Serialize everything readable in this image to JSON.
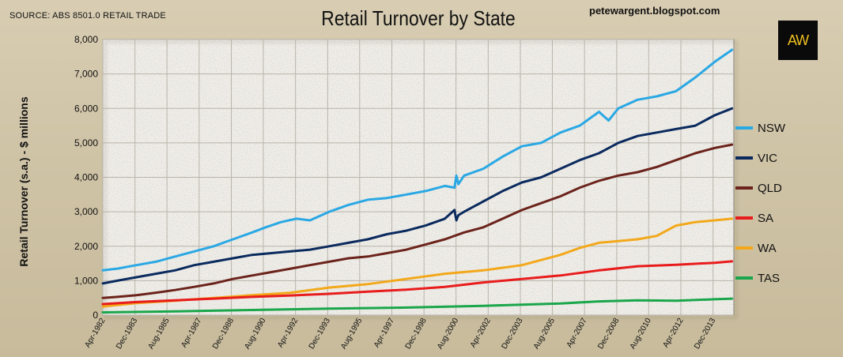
{
  "header": {
    "source": "SOURCE: ABS 8501.0 RETAIL TRADE",
    "blog": "petewargent.blogspot.com",
    "logo": "AW"
  },
  "chart_data": {
    "type": "line",
    "title": "Retail Turnover by State",
    "ylabel": "Retail Turnover (s.a.) - $ millions",
    "xlabel": "",
    "ylim": [
      0,
      8000
    ],
    "yticks": [
      0,
      1000,
      2000,
      3000,
      4000,
      5000,
      6000,
      7000,
      8000
    ],
    "ytick_labels": [
      "0",
      "1,000",
      "2,000",
      "3,000",
      "4,000",
      "5,000",
      "6,000",
      "7,000",
      "8,000"
    ],
    "xlim": [
      1982.25,
      2015.0
    ],
    "xticks": [
      1982.25,
      1983.92,
      1985.58,
      1987.25,
      1988.92,
      1990.58,
      1992.25,
      1993.92,
      1995.58,
      1997.25,
      1998.92,
      2000.58,
      2002.25,
      2003.92,
      2005.58,
      2007.25,
      2008.92,
      2010.58,
      2012.25,
      2013.92
    ],
    "xtick_labels": [
      "Apr-1982",
      "Dec-1983",
      "Aug-1985",
      "Apr-1987",
      "Dec-1988",
      "Aug-1990",
      "Apr-1992",
      "Dec-1993",
      "Aug-1995",
      "Apr-1997",
      "Dec-1998",
      "Aug-2000",
      "Apr-2002",
      "Dec-2003",
      "Aug-2005",
      "Apr-2007",
      "Dec-2008",
      "Aug-2010",
      "Apr-2012",
      "Dec-2013"
    ],
    "grid": true,
    "legend_position": "right",
    "series": [
      {
        "name": "NSW",
        "color": "#2aa8e4",
        "x": [
          1982.25,
          1983.0,
          1984.0,
          1985.0,
          1986.0,
          1987.0,
          1988.0,
          1989.0,
          1990.0,
          1990.7,
          1991.5,
          1992.3,
          1993.0,
          1994.0,
          1995.0,
          1996.0,
          1997.0,
          1998.0,
          1999.0,
          2000.0,
          2000.5,
          2000.6,
          2000.7,
          2001.0,
          2002.0,
          2003.0,
          2004.0,
          2005.0,
          2006.0,
          2007.0,
          2008.0,
          2008.5,
          2009.0,
          2010.0,
          2011.0,
          2012.0,
          2013.0,
          2014.0,
          2014.9
        ],
        "values": [
          1300,
          1350,
          1450,
          1550,
          1700,
          1850,
          2000,
          2200,
          2400,
          2550,
          2700,
          2800,
          2750,
          3000,
          3200,
          3350,
          3400,
          3500,
          3600,
          3750,
          3700,
          4050,
          3800,
          4050,
          4250,
          4600,
          4900,
          5000,
          5300,
          5500,
          5900,
          5650,
          6000,
          6250,
          6350,
          6500,
          6900,
          7350,
          7700
        ]
      },
      {
        "name": "VIC",
        "color": "#0a2a5e",
        "x": [
          1982.25,
          1983.0,
          1984.0,
          1985.0,
          1986.0,
          1987.0,
          1988.0,
          1989.0,
          1990.0,
          1991.0,
          1992.0,
          1993.0,
          1994.0,
          1995.0,
          1996.0,
          1997.0,
          1998.0,
          1999.0,
          2000.0,
          2000.5,
          2000.6,
          2000.7,
          2001.0,
          2002.0,
          2003.0,
          2004.0,
          2005.0,
          2006.0,
          2007.0,
          2008.0,
          2009.0,
          2010.0,
          2011.0,
          2012.0,
          2013.0,
          2014.0,
          2014.9
        ],
        "values": [
          920,
          1000,
          1100,
          1200,
          1300,
          1450,
          1550,
          1650,
          1750,
          1800,
          1850,
          1900,
          2000,
          2100,
          2200,
          2350,
          2450,
          2600,
          2800,
          3050,
          2750,
          2900,
          3000,
          3300,
          3600,
          3850,
          4000,
          4250,
          4500,
          4700,
          5000,
          5200,
          5300,
          5400,
          5500,
          5800,
          6000
        ]
      },
      {
        "name": "QLD",
        "color": "#6b231b",
        "x": [
          1982.25,
          1983.0,
          1984.0,
          1985.0,
          1986.0,
          1987.0,
          1988.0,
          1989.0,
          1990.0,
          1991.0,
          1992.0,
          1993.0,
          1994.0,
          1995.0,
          1996.0,
          1997.0,
          1998.0,
          1999.0,
          2000.0,
          2001.0,
          2002.0,
          2003.0,
          2004.0,
          2005.0,
          2006.0,
          2007.0,
          2008.0,
          2009.0,
          2010.0,
          2011.0,
          2012.0,
          2013.0,
          2014.0,
          2014.9
        ],
        "values": [
          500,
          530,
          580,
          650,
          730,
          820,
          920,
          1050,
          1150,
          1250,
          1350,
          1450,
          1550,
          1650,
          1700,
          1800,
          1900,
          2050,
          2200,
          2400,
          2550,
          2800,
          3050,
          3250,
          3450,
          3700,
          3900,
          4050,
          4150,
          4300,
          4500,
          4700,
          4850,
          4950
        ]
      },
      {
        "name": "SA",
        "color": "#e81c1c",
        "x": [
          1982.25,
          1984.0,
          1986.0,
          1988.0,
          1990.0,
          1992.0,
          1994.0,
          1996.0,
          1998.0,
          2000.0,
          2002.0,
          2004.0,
          2006.0,
          2008.0,
          2010.0,
          2012.0,
          2014.0,
          2014.9
        ],
        "values": [
          320,
          380,
          430,
          480,
          530,
          570,
          620,
          680,
          740,
          820,
          950,
          1050,
          1150,
          1300,
          1420,
          1460,
          1520,
          1560
        ]
      },
      {
        "name": "WA",
        "color": "#f2a81a",
        "x": [
          1982.25,
          1984.0,
          1986.0,
          1988.0,
          1990.0,
          1992.0,
          1994.0,
          1996.0,
          1998.0,
          2000.0,
          2002.0,
          2004.0,
          2005.0,
          2006.0,
          2007.0,
          2008.0,
          2009.0,
          2010.0,
          2011.0,
          2012.0,
          2013.0,
          2014.0,
          2014.9
        ],
        "values": [
          250,
          350,
          420,
          500,
          580,
          650,
          800,
          900,
          1050,
          1200,
          1300,
          1450,
          1600,
          1750,
          1950,
          2100,
          2150,
          2200,
          2300,
          2600,
          2700,
          2750,
          2800
        ]
      },
      {
        "name": "TAS",
        "color": "#1aa64a",
        "x": [
          1982.25,
          1986.0,
          1990.0,
          1994.0,
          1998.0,
          2002.0,
          2006.0,
          2008.0,
          2010.0,
          2012.0,
          2014.0,
          2014.9
        ],
        "values": [
          80,
          110,
          150,
          190,
          220,
          270,
          340,
          400,
          430,
          420,
          460,
          480
        ]
      }
    ]
  }
}
